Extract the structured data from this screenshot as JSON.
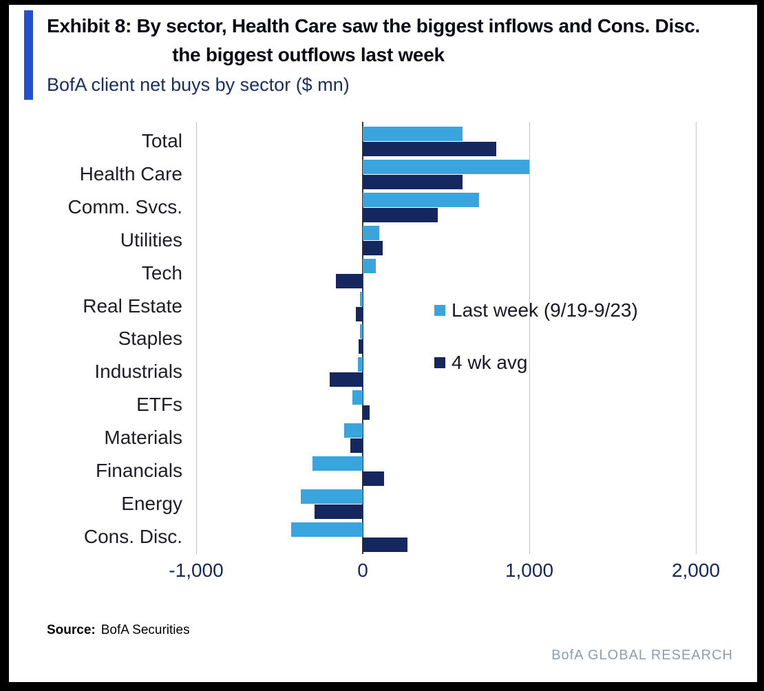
{
  "header": {
    "exhibit_title_line1": "Exhibit 8: By sector, Health Care saw the biggest inflows and Cons. Disc.",
    "exhibit_title_line2": "the biggest outflows last week",
    "subtitle": "BofA client net buys by sector ($ mn)"
  },
  "chart_data": {
    "type": "bar",
    "orientation": "horizontal",
    "title": "BofA client net buys by sector ($ mn)",
    "categories": [
      "Total",
      "Health Care",
      "Comm. Svcs.",
      "Utilities",
      "Tech",
      "Real Estate",
      "Staples",
      "Industrials",
      "ETFs",
      "Materials",
      "Financials",
      "Energy",
      "Cons. Disc."
    ],
    "series": [
      {
        "name": "Last week (9/19-9/23)",
        "color": "#3aa5dc",
        "values": [
          600,
          1000,
          700,
          100,
          80,
          -15,
          -15,
          -30,
          -60,
          -110,
          -300,
          -370,
          -430
        ]
      },
      {
        "name": "4 wk avg",
        "color": "#14275f",
        "values": [
          800,
          600,
          450,
          120,
          -160,
          -40,
          -25,
          -200,
          40,
          -75,
          130,
          -290,
          270
        ]
      }
    ],
    "xlim": [
      -1000,
      2000
    ],
    "xticks": [
      -1000,
      0,
      1000,
      2000
    ],
    "xtick_labels": [
      "-1,000",
      "0",
      "1,000",
      "2,000"
    ],
    "grid": "vertical",
    "legend_position": "inside-right"
  },
  "footer": {
    "source_label": "Source:",
    "source_value": "BofA Securities",
    "branding": "BofA GLOBAL RESEARCH"
  },
  "colors": {
    "accent_bar": "#2350ce",
    "light_blue": "#3aa5dc",
    "navy": "#14275f",
    "grid": "#c4c4c4",
    "zero_line": "#3a3a3a",
    "branding_text": "#8c9db0"
  }
}
